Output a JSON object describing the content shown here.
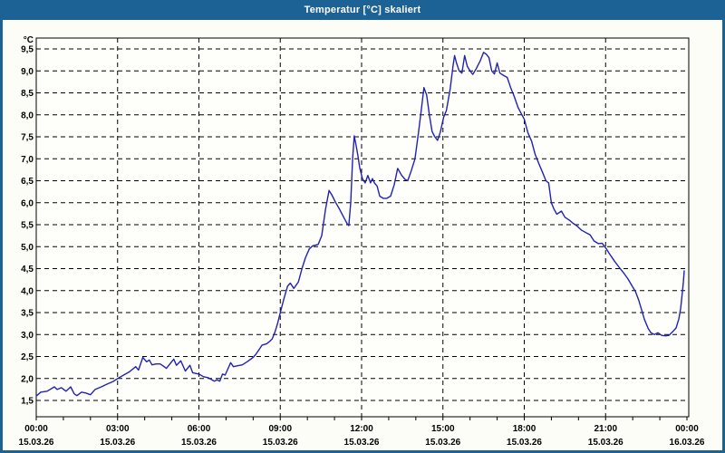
{
  "window": {
    "title": "Temperatur [°C] skaliert"
  },
  "colors": {
    "titlebar": "#1d6294",
    "window_border": "#1d6294",
    "page_bg": "#fcfdf6",
    "plot_bg": "#fefefb",
    "grid": "#000000",
    "frame": "#000000",
    "line": "#2222b2"
  },
  "chart_data": {
    "type": "line",
    "title": "Temperatur [°C] skaliert",
    "xlabel": "",
    "ylabel": "°C",
    "y_unit_label": "°C",
    "ylim": [
      1.13,
      9.75
    ],
    "xlim_hours": [
      0,
      24
    ],
    "grid": "dashed",
    "legend": "none",
    "y_ticks": [
      {
        "value": 9.5,
        "label": "9,5"
      },
      {
        "value": 9.0,
        "label": "9,0"
      },
      {
        "value": 8.5,
        "label": "8,5"
      },
      {
        "value": 8.0,
        "label": "8,0"
      },
      {
        "value": 7.5,
        "label": "7,5"
      },
      {
        "value": 7.0,
        "label": "7,0"
      },
      {
        "value": 6.5,
        "label": "6,5"
      },
      {
        "value": 6.0,
        "label": "6,0"
      },
      {
        "value": 5.5,
        "label": "5,5"
      },
      {
        "value": 5.0,
        "label": "5,0"
      },
      {
        "value": 4.5,
        "label": "4,5"
      },
      {
        "value": 4.0,
        "label": "4,0"
      },
      {
        "value": 3.5,
        "label": "3,5"
      },
      {
        "value": 3.0,
        "label": "3,0"
      },
      {
        "value": 2.5,
        "label": "2,5"
      },
      {
        "value": 2.0,
        "label": "2,0"
      },
      {
        "value": 1.5,
        "label": "1,5"
      }
    ],
    "x_ticks": [
      {
        "hour": 0,
        "time": "00:00",
        "date": "15.03.26"
      },
      {
        "hour": 3,
        "time": "03:00",
        "date": "15.03.26"
      },
      {
        "hour": 6,
        "time": "06:00",
        "date": "15.03.26"
      },
      {
        "hour": 9,
        "time": "09:00",
        "date": "15.03.26"
      },
      {
        "hour": 12,
        "time": "12:00",
        "date": "15.03.26"
      },
      {
        "hour": 15,
        "time": "15:00",
        "date": "15.03.26"
      },
      {
        "hour": 18,
        "time": "18:00",
        "date": "15.03.26"
      },
      {
        "hour": 21,
        "time": "21:00",
        "date": "15.03.26"
      },
      {
        "hour": 24,
        "time": "00:00",
        "date": "16.03.26"
      }
    ],
    "x_minor_tick_every_hours": 1,
    "series": [
      {
        "name": "Temperatur",
        "color": "#2222b2",
        "points": [
          [
            0,
            1.6
          ],
          [
            0.17,
            1.69
          ],
          [
            0.4,
            1.71
          ],
          [
            0.67,
            1.81
          ],
          [
            0.77,
            1.75
          ],
          [
            0.93,
            1.79
          ],
          [
            1.1,
            1.71
          ],
          [
            1.27,
            1.81
          ],
          [
            1.4,
            1.65
          ],
          [
            1.5,
            1.61
          ],
          [
            1.67,
            1.69
          ],
          [
            1.83,
            1.67
          ],
          [
            2,
            1.63
          ],
          [
            2.17,
            1.75
          ],
          [
            2.4,
            1.81
          ],
          [
            2.6,
            1.87
          ],
          [
            2.83,
            1.93
          ],
          [
            3,
            2.0
          ],
          [
            3.23,
            2.08
          ],
          [
            3.43,
            2.15
          ],
          [
            3.67,
            2.27
          ],
          [
            3.77,
            2.19
          ],
          [
            3.93,
            2.48
          ],
          [
            4.07,
            2.38
          ],
          [
            4.17,
            2.42
          ],
          [
            4.27,
            2.31
          ],
          [
            4.43,
            2.33
          ],
          [
            4.57,
            2.33
          ],
          [
            4.67,
            2.29
          ],
          [
            4.8,
            2.23
          ],
          [
            5.07,
            2.44
          ],
          [
            5.17,
            2.3
          ],
          [
            5.33,
            2.4
          ],
          [
            5.5,
            2.17
          ],
          [
            5.67,
            2.3
          ],
          [
            5.77,
            2.13
          ],
          [
            6,
            2.1
          ],
          [
            6.17,
            2.04
          ],
          [
            6.33,
            2.02
          ],
          [
            6.57,
            1.94
          ],
          [
            6.67,
            1.97
          ],
          [
            6.77,
            1.94
          ],
          [
            6.87,
            2.1
          ],
          [
            6.97,
            2.08
          ],
          [
            7.17,
            2.36
          ],
          [
            7.27,
            2.27
          ],
          [
            7.43,
            2.29
          ],
          [
            7.6,
            2.31
          ],
          [
            7.8,
            2.39
          ],
          [
            8,
            2.48
          ],
          [
            8.1,
            2.55
          ],
          [
            8.33,
            2.76
          ],
          [
            8.5,
            2.79
          ],
          [
            8.6,
            2.84
          ],
          [
            8.7,
            2.9
          ],
          [
            8.8,
            3.05
          ],
          [
            8.9,
            3.25
          ],
          [
            9,
            3.5
          ],
          [
            9.13,
            3.8
          ],
          [
            9.27,
            4.1
          ],
          [
            9.37,
            4.17
          ],
          [
            9.5,
            4.05
          ],
          [
            9.67,
            4.2
          ],
          [
            9.8,
            4.5
          ],
          [
            9.93,
            4.75
          ],
          [
            10.07,
            4.95
          ],
          [
            10.2,
            5.02
          ],
          [
            10.4,
            5.05
          ],
          [
            10.53,
            5.25
          ],
          [
            10.67,
            5.85
          ],
          [
            10.8,
            6.28
          ],
          [
            10.9,
            6.18
          ],
          [
            11.03,
            6.02
          ],
          [
            11.17,
            5.87
          ],
          [
            11.33,
            5.68
          ],
          [
            11.47,
            5.52
          ],
          [
            11.53,
            5.48
          ],
          [
            11.6,
            6.0
          ],
          [
            11.67,
            7.0
          ],
          [
            11.73,
            7.52
          ],
          [
            11.8,
            7.3
          ],
          [
            11.87,
            7.05
          ],
          [
            11.93,
            6.8
          ],
          [
            12.03,
            6.55
          ],
          [
            12.13,
            6.45
          ],
          [
            12.23,
            6.62
          ],
          [
            12.33,
            6.45
          ],
          [
            12.4,
            6.55
          ],
          [
            12.47,
            6.45
          ],
          [
            12.57,
            6.38
          ],
          [
            12.67,
            6.15
          ],
          [
            12.8,
            6.1
          ],
          [
            12.93,
            6.1
          ],
          [
            13.07,
            6.15
          ],
          [
            13.2,
            6.4
          ],
          [
            13.33,
            6.78
          ],
          [
            13.47,
            6.63
          ],
          [
            13.6,
            6.53
          ],
          [
            13.7,
            6.5
          ],
          [
            13.83,
            6.72
          ],
          [
            13.97,
            7.0
          ],
          [
            14.1,
            7.6
          ],
          [
            14.2,
            8.1
          ],
          [
            14.3,
            8.62
          ],
          [
            14.4,
            8.45
          ],
          [
            14.5,
            8.0
          ],
          [
            14.6,
            7.62
          ],
          [
            14.7,
            7.5
          ],
          [
            14.8,
            7.42
          ],
          [
            14.9,
            7.6
          ],
          [
            15.03,
            7.95
          ],
          [
            15.13,
            8.1
          ],
          [
            15.27,
            8.6
          ],
          [
            15.37,
            9.1
          ],
          [
            15.43,
            9.35
          ],
          [
            15.5,
            9.18
          ],
          [
            15.6,
            9.0
          ],
          [
            15.7,
            8.95
          ],
          [
            15.8,
            9.35
          ],
          [
            15.9,
            9.1
          ],
          [
            16,
            9.0
          ],
          [
            16.1,
            8.92
          ],
          [
            16.23,
            9.05
          ],
          [
            16.37,
            9.22
          ],
          [
            16.5,
            9.42
          ],
          [
            16.6,
            9.38
          ],
          [
            16.7,
            9.3
          ],
          [
            16.8,
            9.0
          ],
          [
            16.9,
            8.93
          ],
          [
            17,
            9.18
          ],
          [
            17.1,
            8.95
          ],
          [
            17.23,
            8.9
          ],
          [
            17.37,
            8.85
          ],
          [
            17.5,
            8.62
          ],
          [
            17.63,
            8.42
          ],
          [
            17.77,
            8.17
          ],
          [
            17.87,
            8.05
          ],
          [
            18,
            7.9
          ],
          [
            18.13,
            7.6
          ],
          [
            18.27,
            7.4
          ],
          [
            18.4,
            7.1
          ],
          [
            18.53,
            6.9
          ],
          [
            18.67,
            6.7
          ],
          [
            18.8,
            6.5
          ],
          [
            18.9,
            6.45
          ],
          [
            19,
            6.0
          ],
          [
            19.1,
            5.85
          ],
          [
            19.2,
            5.74
          ],
          [
            19.37,
            5.81
          ],
          [
            19.5,
            5.67
          ],
          [
            19.67,
            5.6
          ],
          [
            19.8,
            5.53
          ],
          [
            19.93,
            5.48
          ],
          [
            20.1,
            5.38
          ],
          [
            20.27,
            5.32
          ],
          [
            20.43,
            5.27
          ],
          [
            20.57,
            5.13
          ],
          [
            20.73,
            5.07
          ],
          [
            20.87,
            5.08
          ],
          [
            21.03,
            4.95
          ],
          [
            21.13,
            4.85
          ],
          [
            21.33,
            4.67
          ],
          [
            21.5,
            4.53
          ],
          [
            21.67,
            4.4
          ],
          [
            21.83,
            4.26
          ],
          [
            22,
            4.08
          ],
          [
            22.1,
            3.98
          ],
          [
            22.23,
            3.77
          ],
          [
            22.33,
            3.56
          ],
          [
            22.43,
            3.35
          ],
          [
            22.57,
            3.14
          ],
          [
            22.67,
            3.04
          ],
          [
            22.8,
            3.0
          ],
          [
            22.93,
            3.04
          ],
          [
            23.07,
            2.98
          ],
          [
            23.2,
            2.97
          ],
          [
            23.33,
            2.98
          ],
          [
            23.47,
            3.06
          ],
          [
            23.6,
            3.15
          ],
          [
            23.7,
            3.35
          ],
          [
            23.77,
            3.6
          ],
          [
            23.83,
            3.95
          ],
          [
            23.87,
            4.2
          ],
          [
            23.9,
            4.45
          ]
        ]
      }
    ]
  }
}
